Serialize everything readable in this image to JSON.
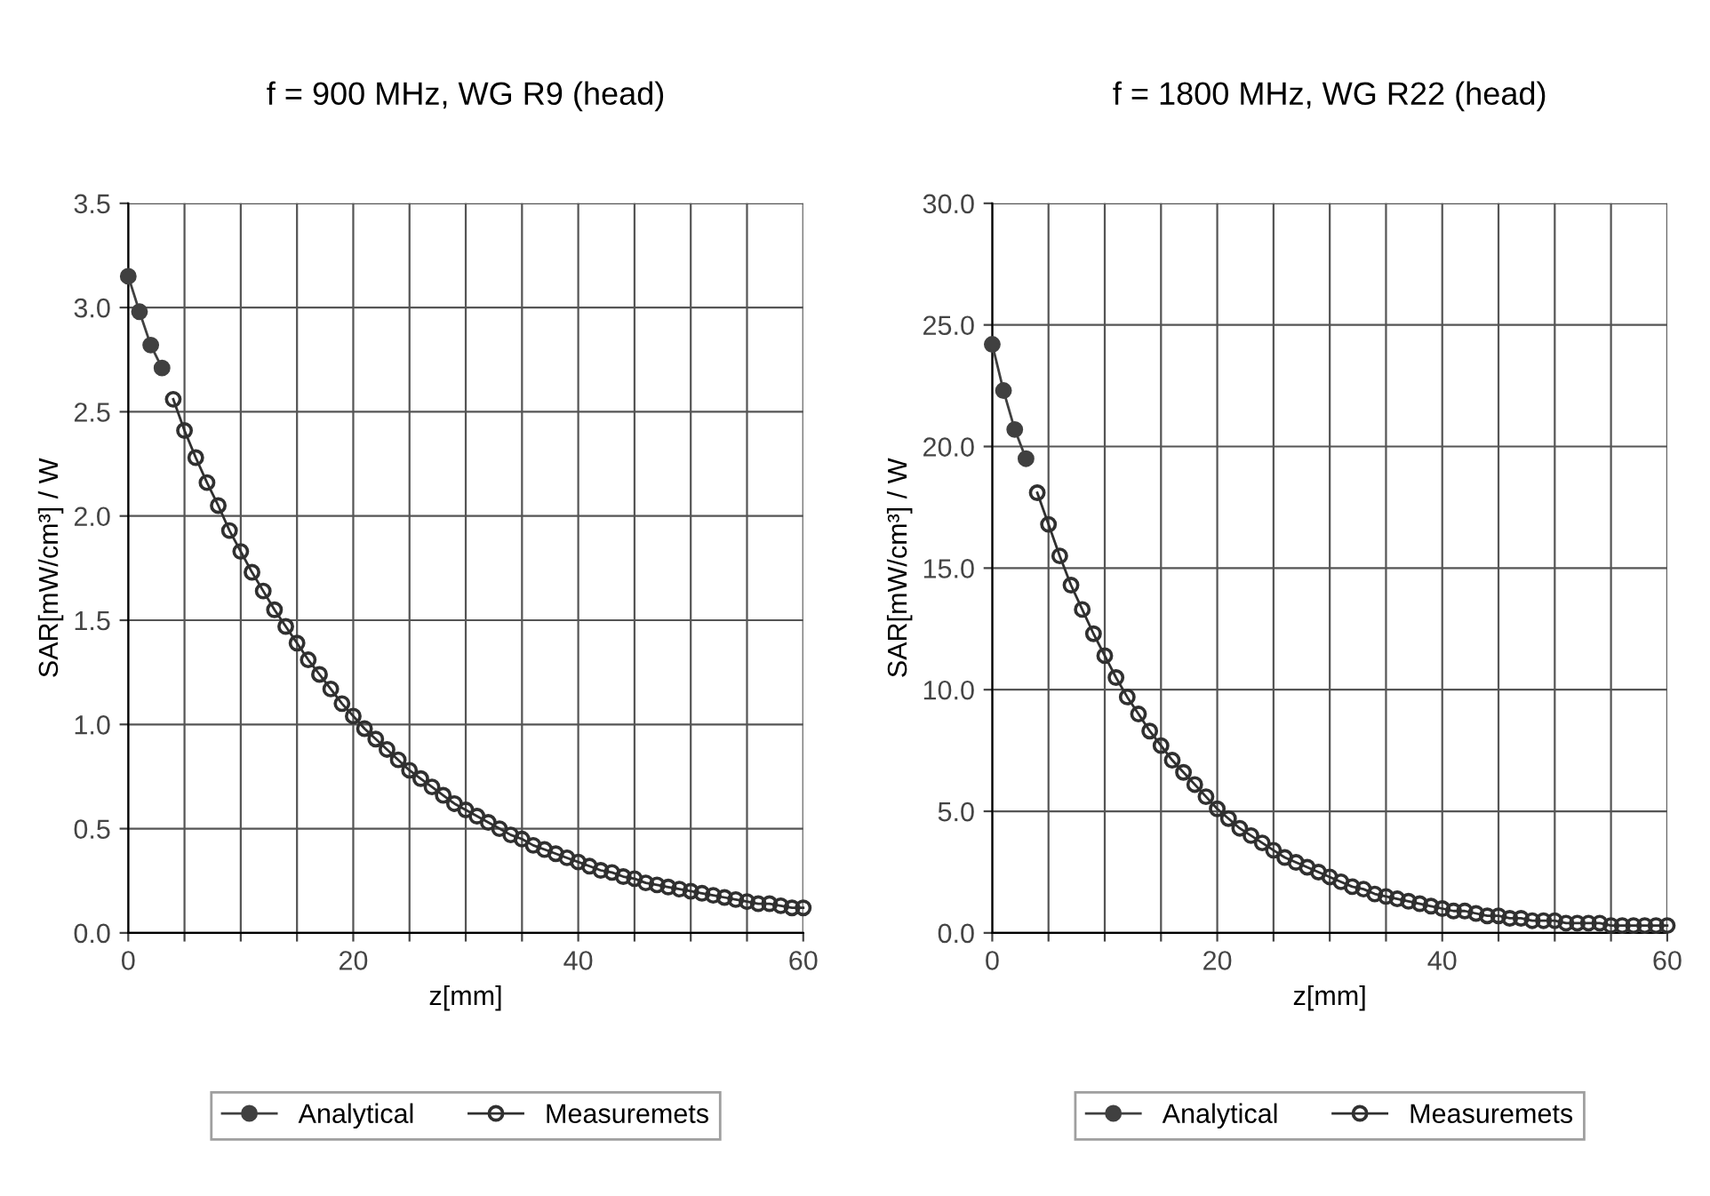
{
  "chart_data": [
    {
      "type": "line",
      "title": "f = 900 MHz, WG R9 (head)",
      "xlabel": "z[mm]",
      "ylabel": "SAR[mW/cm³] / W",
      "xlim": [
        0,
        60
      ],
      "ylim": [
        0,
        3.5
      ],
      "xticks": [
        0,
        {
          "value": 5,
          "label": null
        },
        {
          "value": 10,
          "label": null
        },
        {
          "value": 15,
          "label": null
        },
        20,
        {
          "value": 25,
          "label": null
        },
        {
          "value": 30,
          "label": null
        },
        {
          "value": 35,
          "label": null
        },
        40,
        {
          "value": 45,
          "label": null
        },
        {
          "value": 50,
          "label": null
        },
        {
          "value": 55,
          "label": null
        },
        60
      ],
      "yticks": [
        {
          "value": 0,
          "label": "0.0"
        },
        0.5,
        {
          "value": 1,
          "label": "1.0"
        },
        1.5,
        {
          "value": 2,
          "label": "2.0"
        },
        2.5,
        {
          "value": 3,
          "label": "3.0"
        },
        3.5
      ],
      "grid": true,
      "legend": "bottom",
      "marker": "circle",
      "line_style": "solid",
      "series": [
        {
          "name": "Analytical",
          "color": "#404040",
          "x": [
            0,
            1,
            2,
            3
          ],
          "values": [
            3.15,
            2.98,
            2.82,
            2.71
          ]
        },
        {
          "name": "Measuremets",
          "color": "#303030",
          "x": [
            4,
            5,
            6,
            7,
            8,
            9,
            10,
            11,
            12,
            13,
            14,
            15,
            16,
            17,
            18,
            19,
            20,
            21,
            22,
            23,
            24,
            25,
            26,
            27,
            28,
            29,
            30,
            31,
            32,
            33,
            34,
            35,
            36,
            37,
            38,
            39,
            40,
            41,
            42,
            43,
            44,
            45,
            46,
            47,
            48,
            49,
            50,
            51,
            52,
            53,
            54,
            55,
            56,
            57,
            58,
            59,
            60
          ],
          "values": [
            2.56,
            2.41,
            2.28,
            2.16,
            2.05,
            1.93,
            1.83,
            1.73,
            1.64,
            1.55,
            1.47,
            1.39,
            1.31,
            1.24,
            1.17,
            1.1,
            1.04,
            0.98,
            0.93,
            0.88,
            0.83,
            0.78,
            0.74,
            0.7,
            0.66,
            0.62,
            0.59,
            0.56,
            0.53,
            0.5,
            0.47,
            0.45,
            0.42,
            0.4,
            0.38,
            0.36,
            0.34,
            0.32,
            0.3,
            0.29,
            0.27,
            0.26,
            0.24,
            0.23,
            0.22,
            0.21,
            0.2,
            0.19,
            0.18,
            0.17,
            0.16,
            0.15,
            0.14,
            0.14,
            0.13,
            0.12,
            0.12
          ]
        }
      ]
    },
    {
      "type": "line",
      "title": "f = 1800 MHz, WG R22 (head)",
      "xlabel": "z[mm]",
      "ylabel": "SAR[mW/cm³] / W",
      "xlim": [
        0,
        60
      ],
      "ylim": [
        0,
        30
      ],
      "xticks": [
        0,
        {
          "value": 5,
          "label": null
        },
        {
          "value": 10,
          "label": null
        },
        {
          "value": 15,
          "label": null
        },
        20,
        {
          "value": 25,
          "label": null
        },
        {
          "value": 30,
          "label": null
        },
        {
          "value": 35,
          "label": null
        },
        40,
        {
          "value": 45,
          "label": null
        },
        {
          "value": 50,
          "label": null
        },
        {
          "value": 55,
          "label": null
        },
        60
      ],
      "yticks": [
        {
          "value": 0,
          "label": "0.0"
        },
        {
          "value": 5,
          "label": "5.0"
        },
        {
          "value": 10,
          "label": "10.0"
        },
        {
          "value": 15,
          "label": "15.0"
        },
        {
          "value": 20,
          "label": "20.0"
        },
        {
          "value": 25,
          "label": "25.0"
        },
        {
          "value": 30,
          "label": "30.0"
        }
      ],
      "grid": true,
      "legend": "bottom",
      "marker": "circle",
      "line_style": "solid",
      "series": [
        {
          "name": "Analytical",
          "color": "#404040",
          "x": [
            0,
            1,
            2,
            3
          ],
          "values": [
            24.2,
            22.3,
            20.7,
            19.5
          ]
        },
        {
          "name": "Measuremets",
          "color": "#303030",
          "x": [
            4,
            5,
            6,
            7,
            8,
            9,
            10,
            11,
            12,
            13,
            14,
            15,
            16,
            17,
            18,
            19,
            20,
            21,
            22,
            23,
            24,
            25,
            26,
            27,
            28,
            29,
            30,
            31,
            32,
            33,
            34,
            35,
            36,
            37,
            38,
            39,
            40,
            41,
            42,
            43,
            44,
            45,
            46,
            47,
            48,
            49,
            50,
            51,
            52,
            53,
            54,
            55,
            56,
            57,
            58,
            59,
            60
          ],
          "values": [
            18.1,
            16.8,
            15.5,
            14.3,
            13.3,
            12.3,
            11.4,
            10.5,
            9.7,
            9.0,
            8.3,
            7.7,
            7.1,
            6.6,
            6.1,
            5.6,
            5.1,
            4.7,
            4.3,
            4.0,
            3.7,
            3.4,
            3.1,
            2.9,
            2.7,
            2.5,
            2.3,
            2.1,
            1.9,
            1.8,
            1.6,
            1.5,
            1.4,
            1.3,
            1.2,
            1.1,
            1.0,
            0.9,
            0.9,
            0.8,
            0.7,
            0.7,
            0.6,
            0.6,
            0.5,
            0.5,
            0.5,
            0.4,
            0.4,
            0.4,
            0.4,
            0.3,
            0.3,
            0.3,
            0.3,
            0.3,
            0.3
          ]
        }
      ]
    }
  ]
}
